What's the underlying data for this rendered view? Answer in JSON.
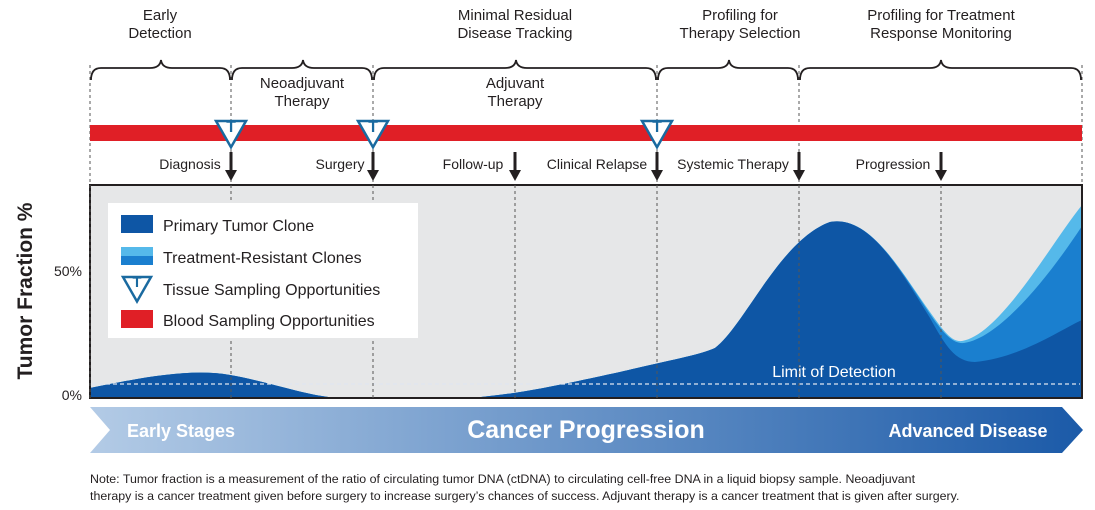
{
  "phases": [
    "Early Detection",
    "Minimal Residual Disease Tracking",
    "Profiling for Therapy Selection",
    "Profiling for Treatment Response Monitoring"
  ],
  "therapies": [
    "Neoadjuvant Therapy",
    "Adjuvant Therapy"
  ],
  "events": [
    "Diagnosis",
    "Surgery",
    "Follow-up",
    "Clinical Relapse",
    "Systemic Therapy",
    "Progression"
  ],
  "tissue_marker": "T",
  "y_axis": {
    "label": "Tumor Fraction %",
    "ticks": [
      "50%",
      "0%"
    ]
  },
  "limit_of_detection": "Limit of Detection",
  "legend": [
    "Primary Tumor Clone",
    "Treatment-Resistant Clones",
    "Tissue Sampling Opportunities",
    "Blood  Sampling Opportunities"
  ],
  "banner": {
    "left": "Early Stages",
    "center": "Cancer Progression",
    "right": "Advanced Disease"
  },
  "note": [
    "Note: Tumor fraction is a measurement of the ratio of circulating tumor DNA (ctDNA) to circulating cell-free DNA in a liquid biopsy sample. Neoadjuvant",
    "therapy is a cancer treatment given before surgery to increase surgery’s chances of success. Adjuvant therapy is a cancer treatment that is given after surgery."
  ]
}
